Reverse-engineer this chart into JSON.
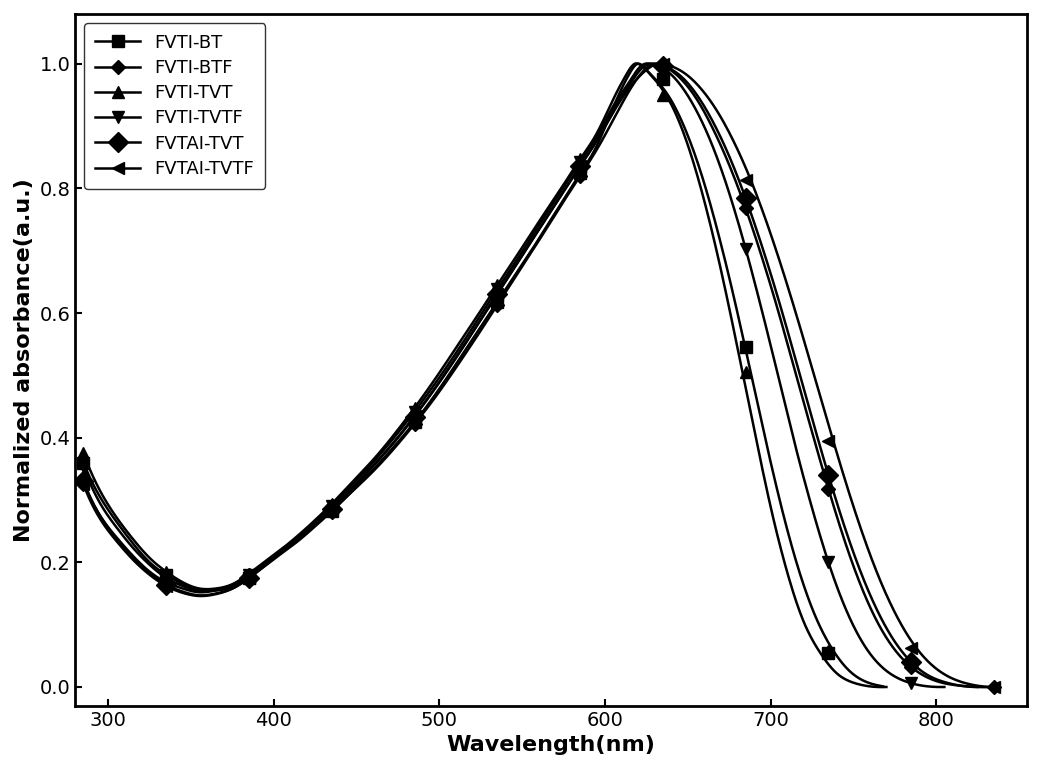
{
  "title": "",
  "xlabel": "Wavelength(nm)",
  "ylabel": "Normalized absorbance(a.u.)",
  "xlim": [
    280,
    855
  ],
  "ylim": [
    -0.03,
    1.08
  ],
  "xticks": [
    300,
    400,
    500,
    600,
    700,
    800
  ],
  "yticks": [
    0.0,
    0.2,
    0.4,
    0.6,
    0.8,
    1.0
  ],
  "series": [
    {
      "label": "FVTI-BT",
      "marker": "s",
      "markersize": 8,
      "x": [
        285,
        295,
        305,
        315,
        325,
        335,
        345,
        355,
        365,
        375,
        385,
        395,
        405,
        415,
        425,
        435,
        445,
        455,
        465,
        475,
        485,
        495,
        505,
        515,
        525,
        535,
        545,
        555,
        565,
        575,
        585,
        595,
        605,
        615,
        620,
        625,
        630,
        640,
        650,
        660,
        670,
        680,
        690,
        700,
        710,
        720,
        730,
        740,
        750,
        760,
        770
      ],
      "y": [
        0.36,
        0.305,
        0.265,
        0.23,
        0.2,
        0.18,
        0.165,
        0.155,
        0.155,
        0.16,
        0.175,
        0.195,
        0.215,
        0.235,
        0.258,
        0.282,
        0.308,
        0.335,
        0.363,
        0.393,
        0.425,
        0.46,
        0.498,
        0.538,
        0.578,
        0.618,
        0.658,
        0.698,
        0.74,
        0.782,
        0.824,
        0.868,
        0.93,
        0.985,
        1.0,
        0.99,
        0.975,
        0.935,
        0.87,
        0.78,
        0.67,
        0.545,
        0.415,
        0.29,
        0.185,
        0.105,
        0.055,
        0.022,
        0.007,
        0.001,
        0.0
      ]
    },
    {
      "label": "FVTI-BTF",
      "marker": "D",
      "markersize": 7,
      "x": [
        285,
        295,
        305,
        315,
        325,
        335,
        345,
        355,
        365,
        375,
        385,
        395,
        405,
        415,
        425,
        435,
        445,
        455,
        465,
        475,
        485,
        495,
        505,
        515,
        525,
        535,
        545,
        555,
        565,
        575,
        585,
        595,
        605,
        615,
        625,
        630,
        635,
        645,
        655,
        665,
        675,
        685,
        695,
        705,
        715,
        725,
        735,
        745,
        755,
        765,
        775,
        785,
        795,
        805,
        815,
        825,
        835
      ],
      "y": [
        0.33,
        0.275,
        0.24,
        0.21,
        0.185,
        0.168,
        0.158,
        0.152,
        0.155,
        0.162,
        0.178,
        0.198,
        0.218,
        0.238,
        0.26,
        0.283,
        0.308,
        0.333,
        0.36,
        0.39,
        0.422,
        0.456,
        0.493,
        0.532,
        0.572,
        0.613,
        0.654,
        0.695,
        0.737,
        0.779,
        0.82,
        0.862,
        0.91,
        0.958,
        0.993,
        1.0,
        0.997,
        0.978,
        0.945,
        0.897,
        0.838,
        0.768,
        0.688,
        0.6,
        0.505,
        0.41,
        0.318,
        0.233,
        0.16,
        0.102,
        0.06,
        0.032,
        0.015,
        0.006,
        0.002,
        0.0,
        0.0
      ]
    },
    {
      "label": "FVTI-TVT",
      "marker": "^",
      "markersize": 8,
      "x": [
        285,
        295,
        305,
        315,
        325,
        335,
        345,
        355,
        365,
        375,
        385,
        395,
        405,
        415,
        425,
        435,
        445,
        455,
        465,
        475,
        485,
        495,
        505,
        515,
        525,
        535,
        545,
        555,
        565,
        575,
        585,
        595,
        605,
        613,
        618,
        622,
        628,
        638,
        648,
        658,
        668,
        678,
        688,
        698,
        708,
        718,
        728,
        738,
        748,
        758,
        768
      ],
      "y": [
        0.375,
        0.315,
        0.272,
        0.237,
        0.207,
        0.185,
        0.168,
        0.158,
        0.158,
        0.165,
        0.182,
        0.202,
        0.222,
        0.244,
        0.268,
        0.294,
        0.322,
        0.35,
        0.38,
        0.413,
        0.448,
        0.485,
        0.524,
        0.564,
        0.604,
        0.645,
        0.685,
        0.726,
        0.766,
        0.806,
        0.847,
        0.888,
        0.943,
        0.983,
        1.0,
        0.997,
        0.982,
        0.95,
        0.898,
        0.825,
        0.732,
        0.624,
        0.505,
        0.385,
        0.274,
        0.18,
        0.108,
        0.058,
        0.025,
        0.008,
        0.001
      ]
    },
    {
      "label": "FVTI-TVTF",
      "marker": "v",
      "markersize": 8,
      "x": [
        285,
        295,
        305,
        315,
        325,
        335,
        345,
        355,
        365,
        375,
        385,
        395,
        405,
        415,
        425,
        435,
        445,
        455,
        465,
        475,
        485,
        495,
        505,
        515,
        525,
        535,
        545,
        555,
        565,
        575,
        585,
        595,
        605,
        615,
        622,
        628,
        635,
        645,
        655,
        665,
        675,
        685,
        695,
        705,
        715,
        725,
        735,
        745,
        755,
        765,
        775,
        785,
        795,
        805
      ],
      "y": [
        0.355,
        0.295,
        0.256,
        0.223,
        0.196,
        0.175,
        0.162,
        0.154,
        0.156,
        0.164,
        0.18,
        0.2,
        0.22,
        0.242,
        0.266,
        0.291,
        0.318,
        0.346,
        0.376,
        0.408,
        0.442,
        0.478,
        0.516,
        0.556,
        0.597,
        0.638,
        0.678,
        0.72,
        0.761,
        0.802,
        0.843,
        0.883,
        0.932,
        0.972,
        0.997,
        1.0,
        0.993,
        0.968,
        0.926,
        0.868,
        0.793,
        0.703,
        0.602,
        0.495,
        0.387,
        0.288,
        0.2,
        0.128,
        0.074,
        0.038,
        0.017,
        0.006,
        0.001,
        0.0
      ]
    },
    {
      "label": "FVTAI-TVT",
      "marker": "D",
      "markersize": 10,
      "x": [
        285,
        295,
        305,
        315,
        325,
        335,
        345,
        355,
        365,
        375,
        385,
        395,
        405,
        415,
        425,
        435,
        445,
        455,
        465,
        475,
        485,
        495,
        505,
        515,
        525,
        535,
        545,
        555,
        565,
        575,
        585,
        595,
        605,
        615,
        622,
        628,
        635,
        645,
        655,
        665,
        675,
        685,
        695,
        705,
        715,
        725,
        735,
        745,
        755,
        765,
        775,
        785,
        795,
        805,
        815,
        825
      ],
      "y": [
        0.33,
        0.275,
        0.238,
        0.208,
        0.183,
        0.164,
        0.153,
        0.147,
        0.15,
        0.158,
        0.175,
        0.196,
        0.217,
        0.239,
        0.262,
        0.286,
        0.312,
        0.34,
        0.369,
        0.4,
        0.434,
        0.47,
        0.508,
        0.548,
        0.589,
        0.63,
        0.671,
        0.713,
        0.754,
        0.795,
        0.836,
        0.877,
        0.926,
        0.967,
        0.992,
        1.0,
        0.997,
        0.982,
        0.952,
        0.908,
        0.852,
        0.784,
        0.706,
        0.62,
        0.527,
        0.432,
        0.34,
        0.255,
        0.181,
        0.12,
        0.073,
        0.04,
        0.019,
        0.008,
        0.002,
        0.0
      ]
    },
    {
      "label": "FVTAI-TVTF",
      "marker": "<",
      "markersize": 8,
      "x": [
        285,
        295,
        305,
        315,
        325,
        335,
        345,
        355,
        365,
        375,
        385,
        395,
        405,
        415,
        425,
        435,
        445,
        455,
        465,
        475,
        485,
        495,
        505,
        515,
        525,
        535,
        545,
        555,
        565,
        575,
        585,
        595,
        605,
        615,
        625,
        632,
        638,
        648,
        658,
        668,
        678,
        688,
        698,
        708,
        718,
        728,
        738,
        748,
        758,
        768,
        778,
        788,
        798,
        808,
        818,
        828,
        838
      ],
      "y": [
        0.325,
        0.27,
        0.234,
        0.204,
        0.18,
        0.162,
        0.151,
        0.146,
        0.149,
        0.158,
        0.175,
        0.196,
        0.217,
        0.239,
        0.263,
        0.287,
        0.313,
        0.341,
        0.37,
        0.401,
        0.435,
        0.471,
        0.509,
        0.549,
        0.59,
        0.631,
        0.672,
        0.713,
        0.754,
        0.795,
        0.836,
        0.876,
        0.922,
        0.962,
        0.99,
        1.0,
        0.998,
        0.985,
        0.96,
        0.923,
        0.874,
        0.814,
        0.743,
        0.663,
        0.576,
        0.485,
        0.394,
        0.307,
        0.228,
        0.16,
        0.105,
        0.063,
        0.034,
        0.016,
        0.006,
        0.001,
        0.0
      ]
    }
  ],
  "color": "#000000",
  "linewidth": 1.8,
  "markevery_nm": 50,
  "legend_fontsize": 13,
  "tick_fontsize": 14,
  "label_fontsize": 16
}
